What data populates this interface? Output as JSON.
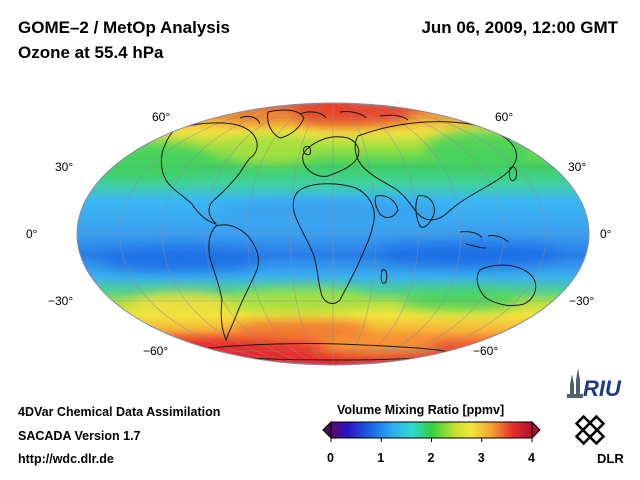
{
  "header": {
    "title_line1": "GOME–2 / MetOp Analysis",
    "title_line2": "Ozone at 55.4 hPa",
    "datetime": "Jun 06, 2009, 12:00 GMT"
  },
  "map": {
    "projection": "mollweide",
    "lat_labels_left": [
      "60°",
      "30°",
      "0°",
      "−30°",
      "−60°"
    ],
    "lat_labels_right": [
      "60°",
      "30°",
      "0°",
      "−30°",
      "−60°"
    ],
    "colors": {
      "high": "#e8202a",
      "upper": "#f5a030",
      "mid": "#f2e63c",
      "low_mid": "#30d060",
      "low": "#3aa8f0",
      "lowest": "#1a6fe6"
    }
  },
  "colorbar": {
    "title": "Volume Mixing Ratio [ppmv]",
    "ticks": [
      "0",
      "1",
      "2",
      "3",
      "4"
    ],
    "min": 0,
    "max": 4
  },
  "footer": {
    "line1": "4DVar Chemical Data Assimilation",
    "line2": "SACADA Version 1.7",
    "line3": "http://wdc.dlr.de"
  },
  "logos": {
    "riu": "RIU",
    "dlr": "DLR"
  }
}
